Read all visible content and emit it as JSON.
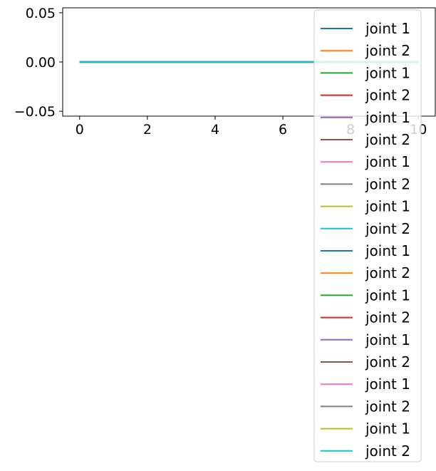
{
  "chart_data": {
    "type": "line",
    "title": "",
    "xlabel": "",
    "ylabel": "",
    "xlim": [
      -0.5,
      10.5
    ],
    "ylim": [
      -0.055,
      0.055
    ],
    "xticks": [
      0,
      2,
      4,
      6,
      8,
      10
    ],
    "xtick_labels": [
      "0",
      "2",
      "4",
      "6",
      "8",
      "10"
    ],
    "yticks": [
      0.05,
      0.0,
      -0.05
    ],
    "ytick_labels": [
      "0.05",
      "0.00",
      "−0.05"
    ],
    "grid": false,
    "legend_position": "top-right",
    "x": [
      0,
      10
    ],
    "series": [
      {
        "name": "joint 1",
        "color": "#1f77b4",
        "values": [
          0.0,
          0.0
        ]
      },
      {
        "name": "joint 2",
        "color": "#ff7f0e",
        "values": [
          0.0,
          0.0
        ]
      },
      {
        "name": "joint 1",
        "color": "#2ca02c",
        "values": [
          0.0,
          0.0
        ]
      },
      {
        "name": "joint 2",
        "color": "#d62728",
        "values": [
          0.0,
          0.0
        ]
      },
      {
        "name": "joint 1",
        "color": "#9467bd",
        "values": [
          0.0,
          0.0
        ]
      },
      {
        "name": "joint 2",
        "color": "#8c564b",
        "values": [
          0.0,
          0.0
        ]
      },
      {
        "name": "joint 1",
        "color": "#e377c2",
        "values": [
          0.0,
          0.0
        ]
      },
      {
        "name": "joint 2",
        "color": "#7f7f7f",
        "values": [
          0.0,
          0.0
        ]
      },
      {
        "name": "joint 1",
        "color": "#bcbd22",
        "values": [
          0.0,
          0.0
        ]
      },
      {
        "name": "joint 2",
        "color": "#17becf",
        "values": [
          0.0,
          0.0
        ]
      },
      {
        "name": "joint 1",
        "color": "#1f77b4",
        "values": [
          0.0,
          0.0
        ]
      },
      {
        "name": "joint 2",
        "color": "#ff7f0e",
        "values": [
          0.0,
          0.0
        ]
      },
      {
        "name": "joint 1",
        "color": "#2ca02c",
        "values": [
          0.0,
          0.0
        ]
      },
      {
        "name": "joint 2",
        "color": "#d62728",
        "values": [
          0.0,
          0.0
        ]
      },
      {
        "name": "joint 1",
        "color": "#9467bd",
        "values": [
          0.0,
          0.0
        ]
      },
      {
        "name": "joint 2",
        "color": "#8c564b",
        "values": [
          0.0,
          0.0
        ]
      },
      {
        "name": "joint 1",
        "color": "#e377c2",
        "values": [
          0.0,
          0.0
        ]
      },
      {
        "name": "joint 2",
        "color": "#7f7f7f",
        "values": [
          0.0,
          0.0
        ]
      },
      {
        "name": "joint 1",
        "color": "#bcbd22",
        "values": [
          0.0,
          0.0
        ]
      },
      {
        "name": "joint 2",
        "color": "#17becf",
        "values": [
          0.0,
          0.0
        ]
      }
    ]
  }
}
